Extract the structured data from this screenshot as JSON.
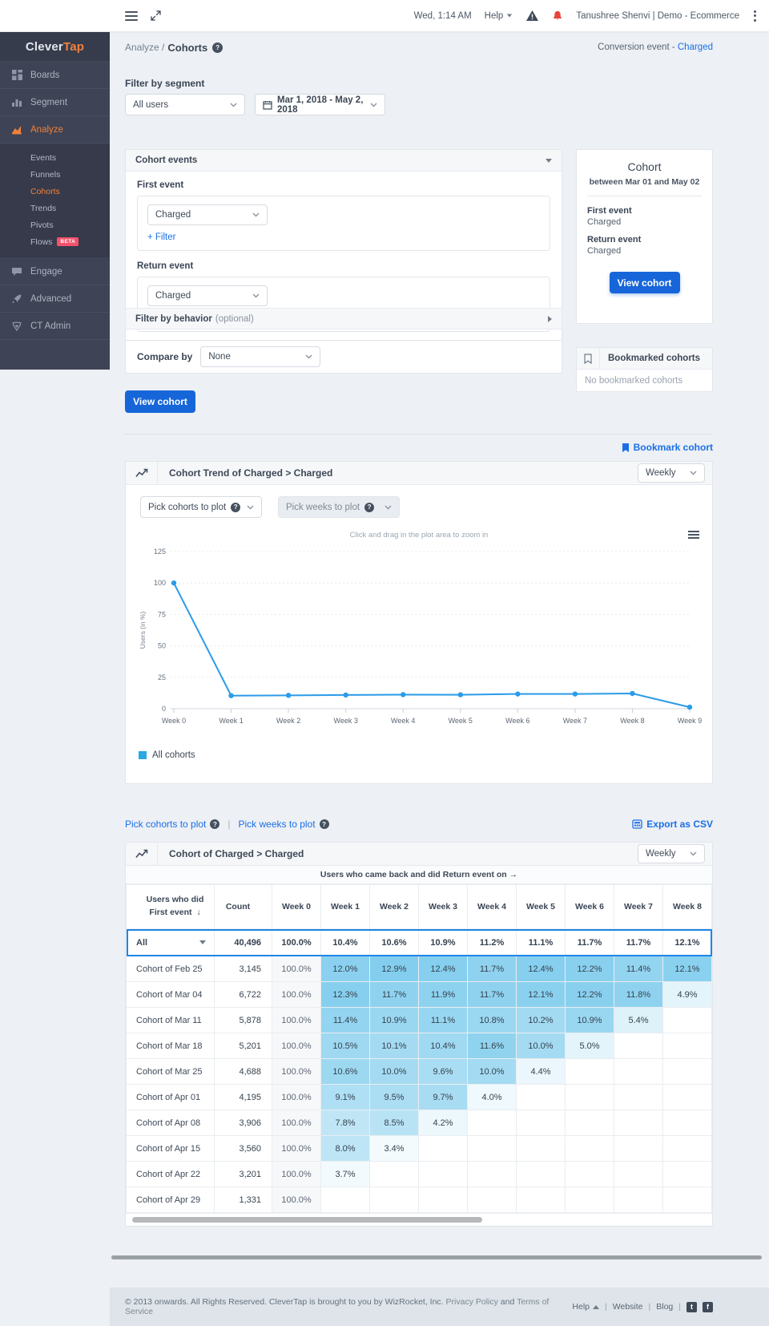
{
  "topbar": {
    "time": "Wed, 1:14 AM",
    "help_label": "Help",
    "user_label": "Tanushree Shenvi | Demo - Ecommerce"
  },
  "breadcrumb": {
    "section": "Analyze /",
    "page": "Cohorts",
    "right_label": "Conversion event - ",
    "right_value": "Charged"
  },
  "sidebar": {
    "logo_part1": "Clever",
    "logo_part2": "Tap",
    "boards": "Boards",
    "segment": "Segment",
    "analyze": "Analyze",
    "submenu": [
      "Events",
      "Funnels",
      "Cohorts",
      "Trends",
      "Pivots",
      "Flows"
    ],
    "active_submenu": "Cohorts",
    "beta_badge": "BETA",
    "engage": "Engage",
    "advanced": "Advanced",
    "ctadmin": "CT Admin"
  },
  "filters": {
    "segment_label": "Filter by segment",
    "segment_value": "All users",
    "date_range": "Mar 1, 2018 - May 2, 2018"
  },
  "cohort_events": {
    "title": "Cohort events",
    "first_event_label": "First event",
    "first_event_value": "Charged",
    "filter_link": "+ Filter",
    "return_event_label": "Return event",
    "return_event_value": "Charged"
  },
  "behavior": {
    "title": "Filter by behavior",
    "optional": "(optional)"
  },
  "compare": {
    "label": "Compare by",
    "value": "None"
  },
  "view_cohort_button": "View cohort",
  "summary_card": {
    "title": "Cohort",
    "subtitle": "between Mar 01 and May 02",
    "first_event_label": "First event",
    "first_event_value": "Charged",
    "return_event_label": "Return event",
    "return_event_value": "Charged",
    "button": "View cohort"
  },
  "bookmarked": {
    "title": "Bookmarked cohorts",
    "empty": "No bookmarked cohorts"
  },
  "bookmark_link": "Bookmark cohort",
  "chart_panel": {
    "title": "Cohort Trend of Charged > Charged",
    "interval": "Weekly",
    "pick_cohorts": "Pick cohorts to plot",
    "pick_weeks": "Pick weeks to plot",
    "hint": "Click and drag in the plot area to zoom in",
    "legend": "All cohorts"
  },
  "chart_data": {
    "type": "line",
    "title": "Cohort Trend of Charged > Charged",
    "x": [
      "Week 0",
      "Week 1",
      "Week 2",
      "Week 3",
      "Week 4",
      "Week 5",
      "Week 6",
      "Week 7",
      "Week 8",
      "Week 9"
    ],
    "series": [
      {
        "name": "All cohorts",
        "values": [
          100,
          10.4,
          10.6,
          10.9,
          11.2,
          11.1,
          11.7,
          11.7,
          12.1,
          1.2
        ]
      }
    ],
    "xlabel": "",
    "ylabel": "Users (in %)",
    "yticks": [
      0,
      25,
      50,
      75,
      100,
      125
    ],
    "ylim": [
      0,
      130
    ],
    "grid": true,
    "legend_position": "bottom-left",
    "line_color": "#2b9be8"
  },
  "links_row": {
    "pick_cohorts": "Pick cohorts to plot",
    "pick_weeks": "Pick weeks to plot",
    "separator": "|",
    "export_csv": "Export as CSV"
  },
  "table": {
    "panel_title": "Cohort of Charged > Charged",
    "interval": "Weekly",
    "caption": "Users who came back and did Return event on →",
    "col1_header_line1": "Users who did",
    "col1_header_line2": "First event",
    "sort_arrow": "↓",
    "count_header": "Count",
    "week_headers": [
      "Week 0",
      "Week 1",
      "Week 2",
      "Week 3",
      "Week 4",
      "Week 5",
      "Week 6",
      "Week 7",
      "Week 8"
    ],
    "all_row": {
      "label": "All",
      "count": "40,496",
      "values": [
        100.0,
        10.4,
        10.6,
        10.9,
        11.2,
        11.1,
        11.7,
        11.7,
        12.1
      ]
    },
    "rows": [
      {
        "label": "Cohort of Feb 25",
        "count": "3,145",
        "values": [
          100.0,
          12.0,
          12.9,
          12.4,
          11.7,
          12.4,
          12.2,
          11.4,
          12.1
        ]
      },
      {
        "label": "Cohort of Mar 04",
        "count": "6,722",
        "values": [
          100.0,
          12.3,
          11.7,
          11.9,
          11.7,
          12.1,
          12.2,
          11.8,
          4.9
        ]
      },
      {
        "label": "Cohort of Mar 11",
        "count": "5,878",
        "values": [
          100.0,
          11.4,
          10.9,
          11.1,
          10.8,
          10.2,
          10.9,
          5.4,
          null
        ]
      },
      {
        "label": "Cohort of Mar 18",
        "count": "5,201",
        "values": [
          100.0,
          10.5,
          10.1,
          10.4,
          11.6,
          10.0,
          5.0,
          null,
          null
        ]
      },
      {
        "label": "Cohort of Mar 25",
        "count": "4,688",
        "values": [
          100.0,
          10.6,
          10.0,
          9.6,
          10.0,
          4.4,
          null,
          null,
          null
        ]
      },
      {
        "label": "Cohort of Apr 01",
        "count": "4,195",
        "values": [
          100.0,
          9.1,
          9.5,
          9.7,
          4.0,
          null,
          null,
          null,
          null
        ]
      },
      {
        "label": "Cohort of Apr 08",
        "count": "3,906",
        "values": [
          100.0,
          7.8,
          8.5,
          4.2,
          null,
          null,
          null,
          null,
          null
        ]
      },
      {
        "label": "Cohort of Apr 15",
        "count": "3,560",
        "values": [
          100.0,
          8.0,
          3.4,
          null,
          null,
          null,
          null,
          null,
          null
        ]
      },
      {
        "label": "Cohort of Apr 22",
        "count": "3,201",
        "values": [
          100.0,
          3.7,
          null,
          null,
          null,
          null,
          null,
          null,
          null
        ]
      },
      {
        "label": "Cohort of Apr 29",
        "count": "1,331",
        "values": [
          100.0,
          null,
          null,
          null,
          null,
          null,
          null,
          null,
          null
        ]
      }
    ]
  },
  "footer": {
    "copyright": "© 2013 onwards. All Rights Reserved. CleverTap is brought to you by WizRocket, Inc.",
    "privacy": "Privacy Policy",
    "and_word": "and",
    "terms": "Terms of Service",
    "help": "Help",
    "website": "Website",
    "blog": "Blog",
    "separator": "|"
  },
  "colors": {
    "accent_blue": "#1766d9",
    "link_blue": "#1a6fe8",
    "line_blue": "#2b9be8",
    "heat_base_rgb": "41,170,225",
    "orange": "#f0813c",
    "beta_red": "#f4516c",
    "bell_red": "#e8443c"
  }
}
